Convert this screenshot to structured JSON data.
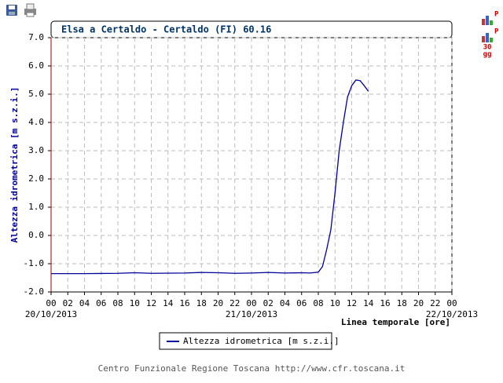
{
  "chart_data": {
    "type": "line",
    "title": "Elsa a Certaldo - Certaldo (FI) 60.16",
    "ylabel": "Altezza idrometrica [m s.z.i.]",
    "xlabel": "Linea temporale [ore]",
    "footer": "Centro Funzionale Regione Toscana http://www.cfr.toscana.it",
    "icon_labels": {
      "p1": "P",
      "p2": "P",
      "days": "30",
      "unit": "gg"
    },
    "x": [
      0,
      4,
      8,
      10,
      12,
      16,
      18,
      20,
      22,
      24,
      26,
      28,
      30,
      31,
      32,
      32.5,
      33,
      33.5,
      34,
      34.5,
      35,
      35.5,
      36,
      36.5,
      37,
      37.5,
      38
    ],
    "series": [
      {
        "name": "Altezza idrometrica [m s.z.i.]",
        "color": "#000099",
        "values": [
          -1.35,
          -1.35,
          -1.34,
          -1.32,
          -1.34,
          -1.33,
          -1.31,
          -1.32,
          -1.34,
          -1.33,
          -1.31,
          -1.33,
          -1.32,
          -1.33,
          -1.3,
          -1.1,
          -0.5,
          0.2,
          1.5,
          3.0,
          4.0,
          4.9,
          5.3,
          5.5,
          5.48,
          5.3,
          5.1
        ]
      }
    ],
    "xlim": [
      0,
      48
    ],
    "xticks": [
      {
        "value": 0,
        "label": "00"
      },
      {
        "value": 2,
        "label": "02"
      },
      {
        "value": 4,
        "label": "04"
      },
      {
        "value": 6,
        "label": "06"
      },
      {
        "value": 8,
        "label": "08"
      },
      {
        "value": 10,
        "label": "10"
      },
      {
        "value": 12,
        "label": "12"
      },
      {
        "value": 14,
        "label": "14"
      },
      {
        "value": 16,
        "label": "16"
      },
      {
        "value": 18,
        "label": "18"
      },
      {
        "value": 20,
        "label": "20"
      },
      {
        "value": 22,
        "label": "22"
      },
      {
        "value": 24,
        "label": "00"
      },
      {
        "value": 26,
        "label": "02"
      },
      {
        "value": 28,
        "label": "04"
      },
      {
        "value": 30,
        "label": "06"
      },
      {
        "value": 32,
        "label": "08"
      },
      {
        "value": 34,
        "label": "10"
      },
      {
        "value": 36,
        "label": "12"
      },
      {
        "value": 38,
        "label": "14"
      },
      {
        "value": 40,
        "label": "16"
      },
      {
        "value": 42,
        "label": "18"
      },
      {
        "value": 44,
        "label": "20"
      },
      {
        "value": 46,
        "label": "22"
      },
      {
        "value": 48,
        "label": "00"
      }
    ],
    "date_labels": [
      {
        "value": 0,
        "label": "20/10/2013"
      },
      {
        "value": 24,
        "label": "21/10/2013"
      },
      {
        "value": 48,
        "label": "22/10/2013"
      }
    ],
    "ylim": [
      -2,
      7
    ],
    "yticks": [
      {
        "value": -2,
        "label": "-2.0"
      },
      {
        "value": -1,
        "label": "-1.0"
      },
      {
        "value": 0,
        "label": "0.0"
      },
      {
        "value": 1,
        "label": "1.0"
      },
      {
        "value": 2,
        "label": "2.0"
      },
      {
        "value": 3,
        "label": "3.0"
      },
      {
        "value": 4,
        "label": "4.0"
      },
      {
        "value": 5,
        "label": "5.0"
      },
      {
        "value": 6,
        "label": "6.0"
      },
      {
        "value": 7,
        "label": "7.0"
      }
    ],
    "grid": true
  }
}
